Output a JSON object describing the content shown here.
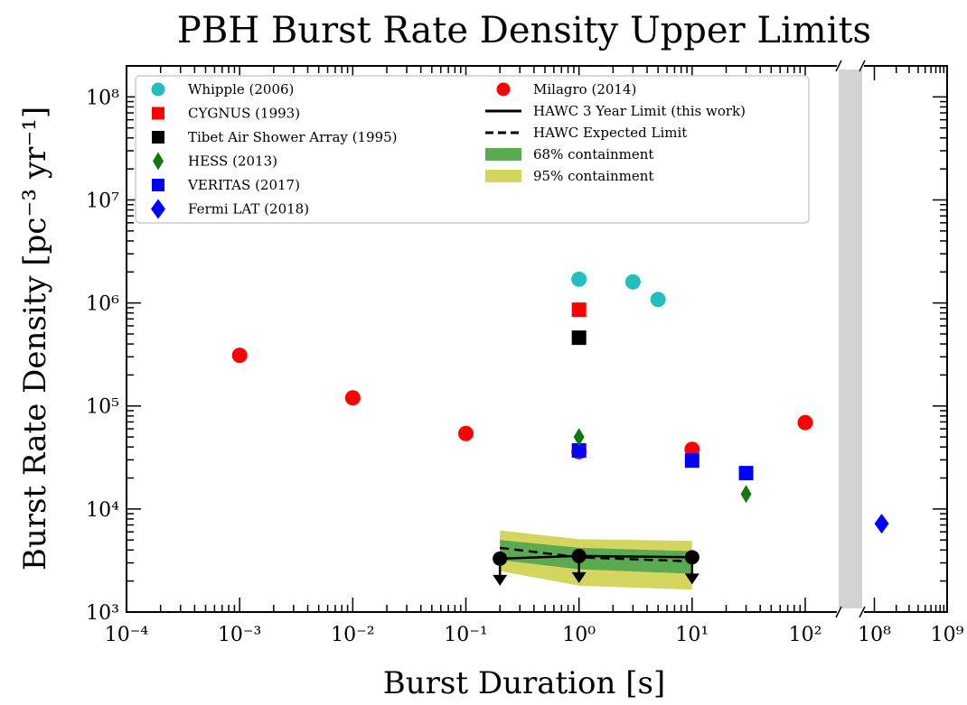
{
  "chart_data": {
    "type": "scatter",
    "title": "PBH Burst Rate Density Upper Limits",
    "xlabel": "Burst Duration [s]",
    "ylabel": "Burst Rate Density [pc⁻³ yr⁻¹]",
    "xscale": "log",
    "yscale": "log",
    "xlim": [
      0.0001,
      1000000000
    ],
    "ylim": [
      1000,
      200000000
    ],
    "axis_break": "between 10^2 and 10^8 on the x-axis",
    "x_ticks": [
      {
        "value": 0.0001,
        "label": "10⁻⁴"
      },
      {
        "value": 0.001,
        "label": "10⁻³"
      },
      {
        "value": 0.01,
        "label": "10⁻²"
      },
      {
        "value": 0.1,
        "label": "10⁻¹"
      },
      {
        "value": 1,
        "label": "10⁰"
      },
      {
        "value": 10,
        "label": "10¹"
      },
      {
        "value": 100,
        "label": "10²"
      },
      {
        "value": 100000000,
        "label": "10⁸"
      },
      {
        "value": 1000000000,
        "label": "10⁹"
      }
    ],
    "y_ticks": [
      {
        "value": 1000,
        "label": "10³"
      },
      {
        "value": 10000,
        "label": "10⁴"
      },
      {
        "value": 100000,
        "label": "10⁵"
      },
      {
        "value": 1000000,
        "label": "10⁶"
      },
      {
        "value": 10000000,
        "label": "10⁷"
      },
      {
        "value": 100000000,
        "label": "10⁸"
      }
    ],
    "legend_position": "top-left",
    "series": [
      {
        "name": "Whipple (2006)",
        "marker": "circle",
        "color": "#22bfbf",
        "points": [
          {
            "x": 1,
            "y": 1700000
          },
          {
            "x": 3,
            "y": 1600000
          },
          {
            "x": 5,
            "y": 1080000
          }
        ]
      },
      {
        "name": "CYGNUS (1993)",
        "marker": "square",
        "color": "#ff0000",
        "points": [
          {
            "x": 1,
            "y": 860000
          }
        ]
      },
      {
        "name": "Tibet Air Shower Array (1995)",
        "marker": "square",
        "color": "#000000",
        "points": [
          {
            "x": 1,
            "y": 460000
          }
        ]
      },
      {
        "name": "HESS (2013)",
        "marker": "thin-diamond",
        "color": "#117711",
        "points": [
          {
            "x": 1,
            "y": 50000
          },
          {
            "x": 30,
            "y": 14000
          }
        ]
      },
      {
        "name": "VERITAS (2017)",
        "marker": "square",
        "color": "#0000ff",
        "points": [
          {
            "x": 1,
            "y": 37000
          },
          {
            "x": 10,
            "y": 29500
          },
          {
            "x": 30,
            "y": 22300
          }
        ]
      },
      {
        "name": "Fermi LAT (2018)",
        "marker": "diamond",
        "color": "#0000ff",
        "points": [
          {
            "x": 126000000,
            "y": 7200
          }
        ]
      },
      {
        "name": "Milagro (2014)",
        "marker": "circle",
        "color": "#ff0000",
        "points": [
          {
            "x": 0.001,
            "y": 310000
          },
          {
            "x": 0.01,
            "y": 120000
          },
          {
            "x": 0.1,
            "y": 54000
          },
          {
            "x": 1,
            "y": 36000
          },
          {
            "x": 10,
            "y": 38000
          },
          {
            "x": 100,
            "y": 69000
          }
        ]
      },
      {
        "name": "HAWC 3 Year Limit (this work)",
        "marker": "line-circle-arrow",
        "color": "#000000",
        "points": [
          {
            "x": 0.2,
            "y": 3300
          },
          {
            "x": 1,
            "y": 3500
          },
          {
            "x": 10,
            "y": 3400
          }
        ]
      },
      {
        "name": "HAWC Expected Limit",
        "marker": "dashed-line",
        "color": "#000000",
        "points": [
          {
            "x": 0.2,
            "y": 4200
          },
          {
            "x": 1,
            "y": 3400
          },
          {
            "x": 10,
            "y": 3100
          }
        ]
      },
      {
        "name": "68% containment",
        "marker": "band",
        "color": "#5aaa52",
        "lower": [
          3200,
          2600,
          2350
        ],
        "upper": [
          5000,
          4200,
          3900
        ],
        "x": [
          0.2,
          1,
          10
        ]
      },
      {
        "name": "95% containment",
        "marker": "band",
        "color": "#d4d55e",
        "lower": [
          2500,
          1800,
          1650
        ],
        "upper": [
          6200,
          5100,
          4900
        ],
        "x": [
          0.2,
          1,
          10
        ]
      }
    ]
  }
}
